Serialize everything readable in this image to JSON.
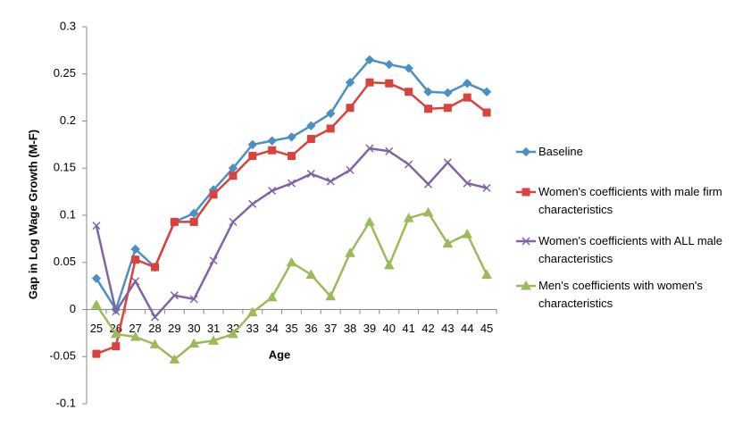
{
  "chart_data": {
    "type": "line",
    "x_label": "Age",
    "y_label": "Gap in Log Wage Growth (M-F)",
    "categories": [
      "25",
      "26",
      "27",
      "28",
      "29",
      "30",
      "31",
      "32",
      "33",
      "34",
      "35",
      "36",
      "37",
      "38",
      "39",
      "40",
      "41",
      "42",
      "43",
      "44",
      "45"
    ],
    "ylim": [
      -0.1,
      0.3
    ],
    "yticks": [
      -0.1,
      -0.05,
      0,
      0.05,
      0.1,
      0.15,
      0.2,
      0.25,
      0.3
    ],
    "legend": "right",
    "series": [
      {
        "name": "Baseline",
        "color": "#4a90c4",
        "marker": "diamond",
        "values": [
          0.033,
          0,
          0.064,
          0.045,
          0.093,
          0.102,
          0.127,
          0.15,
          0.175,
          0.179,
          0.183,
          0.195,
          0.208,
          0.241,
          0.265,
          0.26,
          0.256,
          0.231,
          0.23,
          0.24,
          0.231
        ]
      },
      {
        "name": "Women's coefficients with male firm characteristics",
        "color": "#d9423d",
        "marker": "square",
        "values": [
          -0.047,
          -0.039,
          0.053,
          0.045,
          0.093,
          0.093,
          0.122,
          0.142,
          0.163,
          0.169,
          0.163,
          0.181,
          0.192,
          0.214,
          0.241,
          0.24,
          0.231,
          0.213,
          0.214,
          0.225,
          0.209
        ]
      },
      {
        "name": "Women's coefficients with ALL male characteristics",
        "color": "#8064a2",
        "marker": "x",
        "values": [
          0.089,
          -0.002,
          0.03,
          -0.008,
          0.015,
          0.011,
          0.052,
          0.093,
          0.112,
          0.126,
          0.134,
          0.144,
          0.136,
          0.148,
          0.171,
          0.168,
          0.154,
          0.133,
          0.156,
          0.134,
          0.129
        ]
      },
      {
        "name": "Men's coefficients with women's characteristics",
        "color": "#9bbb59",
        "marker": "triangle",
        "values": [
          0.005,
          -0.026,
          -0.029,
          -0.037,
          -0.053,
          -0.036,
          -0.033,
          -0.026,
          -0.003,
          0.013,
          0.05,
          0.037,
          0.014,
          0.06,
          0.093,
          0.047,
          0.097,
          0.103,
          0.07,
          0.08,
          0.037
        ]
      }
    ]
  }
}
